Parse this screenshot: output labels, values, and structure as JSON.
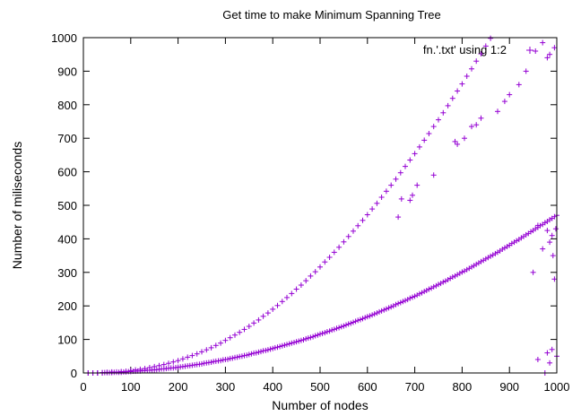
{
  "chart_data": {
    "type": "scatter",
    "title": "Get time to make Minimum Spanning Tree",
    "xlabel": "Number of nodes",
    "ylabel": "Number of miliseconds",
    "xlim": [
      0,
      1000
    ],
    "ylim": [
      0,
      1000
    ],
    "xticks": [
      0,
      100,
      200,
      300,
      400,
      500,
      600,
      700,
      800,
      900,
      1000
    ],
    "yticks": [
      0,
      100,
      200,
      300,
      400,
      500,
      600,
      700,
      800,
      900,
      1000
    ],
    "grid": false,
    "legend_position": "top-right",
    "marker": "plus",
    "series": [
      {
        "name": "fn.'.txt' using 1:2",
        "color": "#9400d3",
        "points": [
          [
            10,
            0
          ],
          [
            20,
            0
          ],
          [
            30,
            0
          ],
          [
            40,
            1
          ],
          [
            50,
            2
          ],
          [
            60,
            3
          ],
          [
            70,
            3
          ],
          [
            80,
            4
          ],
          [
            90,
            5
          ],
          [
            100,
            7
          ],
          [
            110,
            9
          ],
          [
            120,
            11
          ],
          [
            130,
            13
          ],
          [
            140,
            16
          ],
          [
            150,
            19
          ],
          [
            160,
            22
          ],
          [
            170,
            25
          ],
          [
            180,
            29
          ],
          [
            190,
            33
          ],
          [
            200,
            37
          ],
          [
            210,
            42
          ],
          [
            220,
            47
          ],
          [
            230,
            52
          ],
          [
            240,
            57
          ],
          [
            250,
            63
          ],
          [
            260,
            69
          ],
          [
            270,
            75
          ],
          [
            280,
            82
          ],
          [
            290,
            89
          ],
          [
            300,
            97
          ],
          [
            310,
            105
          ],
          [
            320,
            113
          ],
          [
            330,
            121
          ],
          [
            340,
            130
          ],
          [
            350,
            139
          ],
          [
            360,
            149
          ],
          [
            370,
            158
          ],
          [
            380,
            169
          ],
          [
            390,
            179
          ],
          [
            400,
            190
          ],
          [
            410,
            201
          ],
          [
            420,
            213
          ],
          [
            430,
            225
          ],
          [
            440,
            237
          ],
          [
            450,
            250
          ],
          [
            460,
            262
          ],
          [
            470,
            275
          ],
          [
            480,
            289
          ],
          [
            490,
            302
          ],
          [
            500,
            316
          ],
          [
            510,
            331
          ],
          [
            520,
            345
          ],
          [
            530,
            360
          ],
          [
            540,
            375
          ],
          [
            550,
            391
          ],
          [
            560,
            407
          ],
          [
            570,
            423
          ],
          [
            580,
            439
          ],
          [
            590,
            455
          ],
          [
            600,
            472
          ],
          [
            610,
            489
          ],
          [
            620,
            506
          ],
          [
            630,
            524
          ],
          [
            640,
            542
          ],
          [
            650,
            560
          ],
          [
            660,
            578
          ],
          [
            670,
            597
          ],
          [
            680,
            616
          ],
          [
            690,
            635
          ],
          [
            700,
            654
          ],
          [
            710,
            674
          ],
          [
            720,
            694
          ],
          [
            730,
            714
          ],
          [
            740,
            735
          ],
          [
            750,
            755
          ],
          [
            760,
            776
          ],
          [
            770,
            797
          ],
          [
            780,
            819
          ],
          [
            790,
            841
          ],
          [
            800,
            862
          ],
          [
            810,
            885
          ],
          [
            820,
            907
          ],
          [
            830,
            930
          ],
          [
            840,
            952
          ],
          [
            850,
            975
          ],
          [
            860,
            998
          ],
          [
            665,
            465
          ],
          [
            672,
            519
          ],
          [
            690,
            515
          ],
          [
            695,
            530
          ],
          [
            705,
            560
          ],
          [
            740,
            590
          ],
          [
            785,
            690
          ],
          [
            790,
            682
          ],
          [
            805,
            700
          ],
          [
            820,
            735
          ],
          [
            830,
            740
          ],
          [
            840,
            760
          ],
          [
            875,
            780
          ],
          [
            890,
            810
          ],
          [
            900,
            830
          ],
          [
            920,
            860
          ],
          [
            935,
            900
          ],
          [
            955,
            960
          ],
          [
            970,
            985
          ],
          [
            985,
            950
          ],
          [
            995,
            970
          ],
          [
            980,
            940
          ],
          [
            10,
            0
          ],
          [
            20,
            0
          ],
          [
            30,
            0
          ],
          [
            40,
            0
          ],
          [
            50,
            1
          ],
          [
            60,
            1
          ],
          [
            70,
            2
          ],
          [
            80,
            2
          ],
          [
            90,
            3
          ],
          [
            100,
            4
          ],
          [
            110,
            5
          ],
          [
            120,
            6
          ],
          [
            130,
            7
          ],
          [
            140,
            8
          ],
          [
            150,
            9
          ],
          [
            160,
            11
          ],
          [
            170,
            12
          ],
          [
            180,
            14
          ],
          [
            190,
            15
          ],
          [
            200,
            17
          ],
          [
            210,
            19
          ],
          [
            220,
            21
          ],
          [
            230,
            23
          ],
          [
            240,
            25
          ],
          [
            250,
            27
          ],
          [
            260,
            30
          ],
          [
            270,
            32
          ],
          [
            280,
            35
          ],
          [
            290,
            37
          ],
          [
            300,
            40
          ],
          [
            310,
            43
          ],
          [
            320,
            46
          ],
          [
            330,
            49
          ],
          [
            340,
            52
          ],
          [
            350,
            55
          ],
          [
            360,
            59
          ],
          [
            370,
            62
          ],
          [
            380,
            66
          ],
          [
            390,
            69
          ],
          [
            400,
            73
          ],
          [
            410,
            77
          ],
          [
            420,
            81
          ],
          [
            430,
            85
          ],
          [
            440,
            89
          ],
          [
            450,
            93
          ],
          [
            460,
            97
          ],
          [
            470,
            102
          ],
          [
            480,
            106
          ],
          [
            490,
            111
          ],
          [
            500,
            116
          ],
          [
            510,
            120
          ],
          [
            520,
            125
          ],
          [
            530,
            130
          ],
          [
            540,
            135
          ],
          [
            550,
            140
          ],
          [
            560,
            146
          ],
          [
            570,
            151
          ],
          [
            580,
            157
          ],
          [
            590,
            162
          ],
          [
            600,
            168
          ],
          [
            610,
            173
          ],
          [
            620,
            179
          ],
          [
            630,
            185
          ],
          [
            640,
            191
          ],
          [
            650,
            197
          ],
          [
            660,
            204
          ],
          [
            670,
            210
          ],
          [
            680,
            216
          ],
          [
            690,
            223
          ],
          [
            700,
            229
          ],
          [
            710,
            236
          ],
          [
            720,
            243
          ],
          [
            730,
            250
          ],
          [
            740,
            257
          ],
          [
            750,
            264
          ],
          [
            760,
            271
          ],
          [
            770,
            278
          ],
          [
            780,
            286
          ],
          [
            790,
            293
          ],
          [
            800,
            301
          ],
          [
            810,
            308
          ],
          [
            820,
            316
          ],
          [
            830,
            324
          ],
          [
            840,
            332
          ],
          [
            850,
            340
          ],
          [
            860,
            348
          ],
          [
            870,
            356
          ],
          [
            880,
            364
          ],
          [
            890,
            373
          ],
          [
            900,
            381
          ],
          [
            910,
            390
          ],
          [
            920,
            398
          ],
          [
            930,
            407
          ],
          [
            940,
            416
          ],
          [
            950,
            425
          ],
          [
            960,
            434
          ],
          [
            970,
            443
          ],
          [
            980,
            452
          ],
          [
            990,
            461
          ],
          [
            1000,
            470
          ],
          [
            30,
            0
          ],
          [
            45,
            1
          ],
          [
            55,
            1
          ],
          [
            65,
            2
          ],
          [
            75,
            2
          ],
          [
            85,
            3
          ],
          [
            95,
            4
          ],
          [
            105,
            5
          ],
          [
            115,
            6
          ],
          [
            125,
            7
          ],
          [
            135,
            8
          ],
          [
            145,
            9
          ],
          [
            155,
            10
          ],
          [
            165,
            12
          ],
          [
            175,
            13
          ],
          [
            185,
            15
          ],
          [
            195,
            16
          ],
          [
            205,
            18
          ],
          [
            215,
            20
          ],
          [
            225,
            22
          ],
          [
            235,
            24
          ],
          [
            245,
            26
          ],
          [
            255,
            29
          ],
          [
            265,
            31
          ],
          [
            275,
            34
          ],
          [
            285,
            36
          ],
          [
            295,
            39
          ],
          [
            305,
            41
          ],
          [
            315,
            44
          ],
          [
            325,
            47
          ],
          [
            335,
            50
          ],
          [
            345,
            53
          ],
          [
            355,
            57
          ],
          [
            365,
            60
          ],
          [
            375,
            64
          ],
          [
            385,
            67
          ],
          [
            395,
            71
          ],
          [
            405,
            75
          ],
          [
            415,
            79
          ],
          [
            425,
            83
          ],
          [
            435,
            87
          ],
          [
            445,
            91
          ],
          [
            455,
            95
          ],
          [
            465,
            99
          ],
          [
            475,
            104
          ],
          [
            485,
            108
          ],
          [
            495,
            113
          ],
          [
            505,
            118
          ],
          [
            515,
            123
          ],
          [
            525,
            128
          ],
          [
            535,
            133
          ],
          [
            545,
            138
          ],
          [
            555,
            143
          ],
          [
            565,
            148
          ],
          [
            575,
            154
          ],
          [
            585,
            159
          ],
          [
            595,
            165
          ],
          [
            605,
            170
          ],
          [
            615,
            176
          ],
          [
            625,
            182
          ],
          [
            635,
            188
          ],
          [
            645,
            194
          ],
          [
            655,
            200
          ],
          [
            665,
            207
          ],
          [
            675,
            213
          ],
          [
            685,
            219
          ],
          [
            695,
            226
          ],
          [
            705,
            232
          ],
          [
            715,
            239
          ],
          [
            725,
            246
          ],
          [
            735,
            253
          ],
          [
            745,
            260
          ],
          [
            755,
            267
          ],
          [
            765,
            274
          ],
          [
            775,
            282
          ],
          [
            785,
            289
          ],
          [
            795,
            297
          ],
          [
            805,
            304
          ],
          [
            815,
            312
          ],
          [
            825,
            320
          ],
          [
            835,
            328
          ],
          [
            845,
            336
          ],
          [
            855,
            344
          ],
          [
            865,
            352
          ],
          [
            875,
            360
          ],
          [
            885,
            369
          ],
          [
            895,
            377
          ],
          [
            905,
            386
          ],
          [
            915,
            394
          ],
          [
            925,
            403
          ],
          [
            935,
            412
          ],
          [
            945,
            421
          ],
          [
            955,
            430
          ],
          [
            965,
            439
          ],
          [
            975,
            448
          ],
          [
            985,
            457
          ],
          [
            995,
            466
          ],
          [
            960,
            440
          ],
          [
            980,
            425
          ],
          [
            990,
            410
          ],
          [
            998,
            430
          ],
          [
            995,
            280
          ],
          [
            980,
            60
          ],
          [
            990,
            70
          ],
          [
            985,
            30
          ],
          [
            1000,
            50
          ],
          [
            975,
            0
          ],
          [
            960,
            40
          ],
          [
            992,
            350
          ],
          [
            985,
            390
          ],
          [
            970,
            370
          ],
          [
            950,
            300
          ]
        ]
      }
    ]
  }
}
